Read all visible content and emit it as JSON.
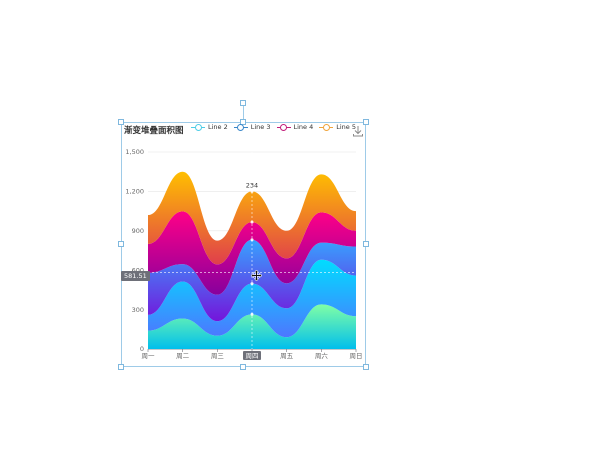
{
  "chart_data": {
    "type": "area",
    "title": "渐变堆叠面积图",
    "categories": [
      "周一",
      "周二",
      "周三",
      "周四",
      "周五",
      "周六",
      "周日"
    ],
    "y_ticks": [
      "0",
      "300",
      "600",
      "900",
      "1,200",
      "1,500"
    ],
    "ylim": [
      0,
      1500
    ],
    "stacked": true,
    "smooth": true,
    "grid": true,
    "legend_position": "top",
    "series": [
      {
        "name": "",
        "values": [
          140,
          232,
          101,
          264,
          90,
          340,
          250
        ],
        "color_top": "#80ffa5",
        "color_bottom": "#01bfec"
      },
      {
        "name": "Line 2",
        "values": [
          120,
          282,
          111,
          234,
          220,
          340,
          310
        ],
        "color_top": "#00ddff",
        "color_bottom": "#4d77ff"
      },
      {
        "name": "Line 3",
        "values": [
          320,
          132,
          201,
          334,
          190,
          130,
          220
        ],
        "color_top": "#37a2ff",
        "color_bottom": "#7415db"
      },
      {
        "name": "Line 4",
        "values": [
          220,
          402,
          231,
          134,
          190,
          230,
          120
        ],
        "color_top": "#ff0087",
        "color_bottom": "#87009d"
      },
      {
        "name": "Line 5",
        "values": [
          220,
          302,
          181,
          234,
          210,
          290,
          150
        ],
        "color_top": "#ffbf00",
        "color_bottom": "#e03e4c"
      }
    ],
    "tooltip": {
      "category": "周四",
      "label": "234",
      "axis_pointer_value": "581.51"
    }
  },
  "legend_colors": [
    "#4ecde6",
    "#3a87c9",
    "#c21e7a",
    "#f0a43c"
  ],
  "icons": {
    "download": "download-icon",
    "cursor": "move-cursor-icon"
  }
}
